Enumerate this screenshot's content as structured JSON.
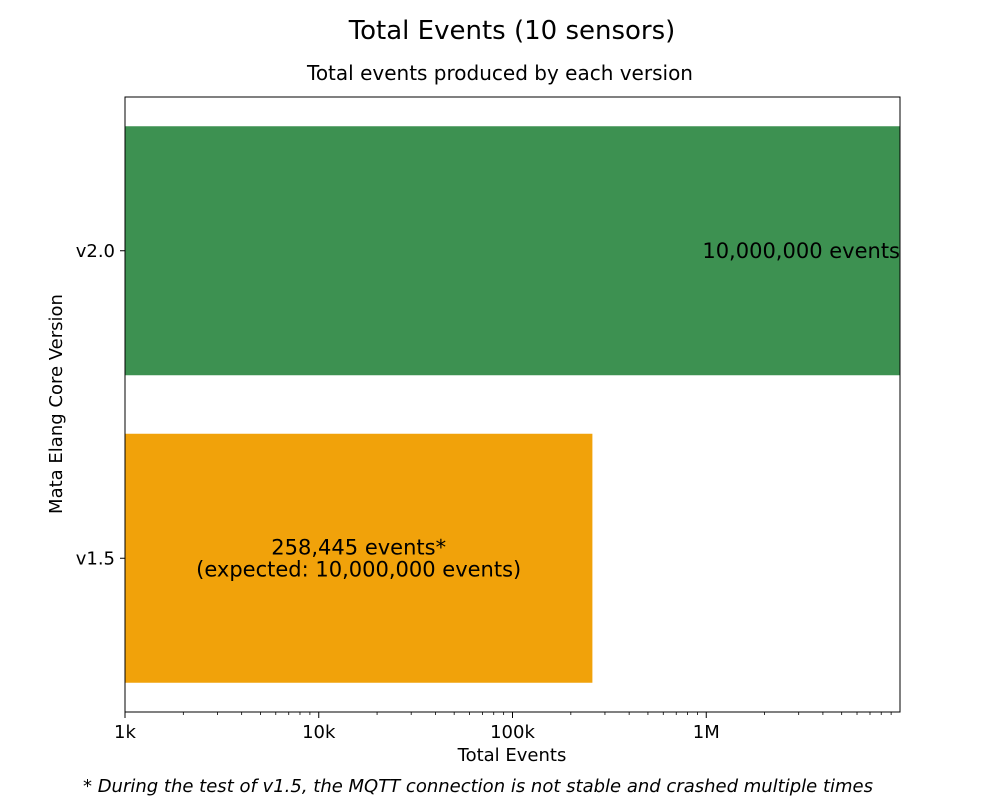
{
  "chart_data": {
    "type": "bar",
    "orientation": "horizontal",
    "title": "Total Events (10 sensors)",
    "subtitle": "Total events produced by each version",
    "xlabel": "Total Events",
    "ylabel": "Mata Elang Core Version",
    "x_scale": "log",
    "xlim": [
      1000,
      10000000
    ],
    "x_ticks": [
      {
        "value": 1000,
        "label": "1k"
      },
      {
        "value": 10000,
        "label": "10k"
      },
      {
        "value": 100000,
        "label": "100k"
      },
      {
        "value": 1000000,
        "label": "1M"
      }
    ],
    "categories": [
      "v1.5",
      "v2.0"
    ],
    "values": [
      258445,
      10000000
    ],
    "colors": [
      "#f1a20a",
      "#3d9151"
    ],
    "bar_labels": [
      [
        "258,445 events*",
        "(expected: 10,000,000 events)"
      ],
      [
        "10,000,000 events"
      ]
    ],
    "footnote": "* During the test of v1.5, the MQTT connection is not stable and crashed multiple times",
    "footnote_color": "#ff0000"
  }
}
